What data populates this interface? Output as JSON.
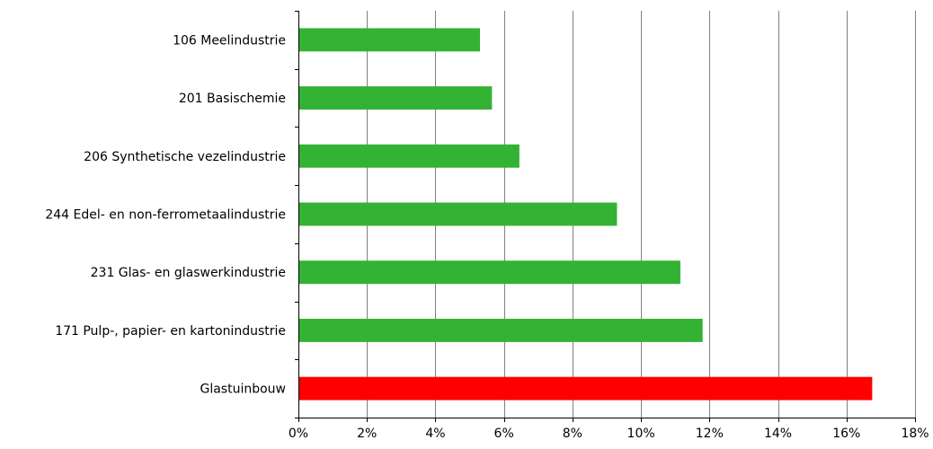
{
  "chart_data": {
    "type": "bar",
    "orientation": "horizontal",
    "categories": [
      "106 Meelindustrie",
      "201 Basischemie",
      "206 Synthetische vezelindustrie",
      "244 Edel- en non-ferrometaalindustrie",
      "231 Glas- en glaswerkindustrie",
      "171 Pulp-, papier- en kartonindustrie",
      "Glastuinbouw"
    ],
    "values": [
      5.3,
      5.65,
      6.45,
      9.3,
      11.15,
      11.8,
      16.75
    ],
    "colors": [
      "#33b233",
      "#33b233",
      "#33b233",
      "#33b233",
      "#33b233",
      "#33b233",
      "#ff0000"
    ],
    "xlim": [
      0,
      18
    ],
    "xticks": [
      0,
      2,
      4,
      6,
      8,
      10,
      12,
      14,
      16,
      18
    ],
    "xtick_labels": [
      "0%",
      "2%",
      "4%",
      "6%",
      "8%",
      "10%",
      "12%",
      "14%",
      "16%",
      "18%"
    ],
    "grid": "vertical",
    "title": "",
    "xlabel": "",
    "ylabel": ""
  }
}
